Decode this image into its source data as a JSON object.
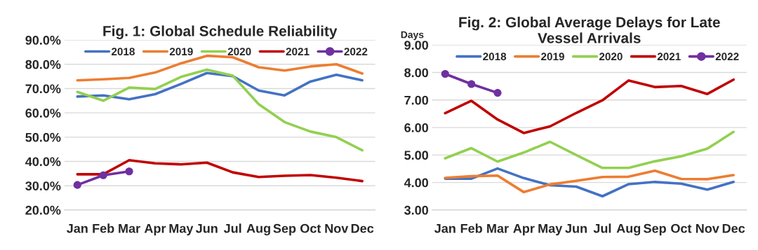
{
  "chart_data": [
    {
      "type": "line",
      "title": "Fig. 1: Global Schedule Reliability",
      "categories": [
        "Jan",
        "Feb",
        "Mar",
        "Apr",
        "May",
        "Jun",
        "Jul",
        "Aug",
        "Sep",
        "Oct",
        "Nov",
        "Dec"
      ],
      "ylim": [
        20,
        90
      ],
      "yticks": [
        {
          "value": 20,
          "label": "20.0%"
        },
        {
          "value": 30,
          "label": "30.0%"
        },
        {
          "value": 40,
          "label": "40.0%"
        },
        {
          "value": 50,
          "label": "50.0%"
        },
        {
          "value": 60,
          "label": "60.0%"
        },
        {
          "value": 70,
          "label": "70.0%"
        },
        {
          "value": 80,
          "label": "80.0%"
        },
        {
          "value": 90,
          "label": "90.0%"
        }
      ],
      "grid": "y",
      "legend": "top right",
      "marker": "none",
      "line_style": "solid",
      "series": [
        {
          "name": "2018",
          "color": "#4472c4",
          "values": [
            66.7,
            67.2,
            65.6,
            67.7,
            71.9,
            76.4,
            75.1,
            69.2,
            67.2,
            72.9,
            75.7,
            73.4
          ]
        },
        {
          "name": "2019",
          "color": "#ed7d31",
          "values": [
            73.4,
            73.8,
            74.4,
            76.6,
            80.4,
            83.5,
            82.9,
            78.8,
            77.4,
            79.1,
            80.0,
            76.2
          ]
        },
        {
          "name": "2020",
          "color": "#92d050",
          "values": [
            68.6,
            65.0,
            70.4,
            69.8,
            74.8,
            77.8,
            75.3,
            63.6,
            56.2,
            52.3,
            50.0,
            44.6
          ]
        },
        {
          "name": "2021",
          "color": "#c00000",
          "values": [
            34.7,
            34.7,
            40.5,
            39.2,
            38.8,
            39.5,
            35.5,
            33.6,
            34.1,
            34.4,
            33.3,
            31.9
          ]
        },
        {
          "name": "2022",
          "color": "#7030a0",
          "marker": "circle",
          "values": [
            30.3,
            34.3,
            35.9,
            null,
            null,
            null,
            null,
            null,
            null,
            null,
            null,
            null
          ]
        }
      ]
    },
    {
      "type": "line",
      "title": "Fig. 2: Global Average Delays for Late\nVessel Arrivals",
      "ylabel": "Days",
      "categories": [
        "Jan",
        "Feb",
        "Mar",
        "Apr",
        "May",
        "Jun",
        "Jul",
        "Aug",
        "Sep",
        "Oct",
        "Nov",
        "Dec"
      ],
      "ylim": [
        3,
        9
      ],
      "yticks": [
        {
          "value": 3,
          "label": "3.00"
        },
        {
          "value": 4,
          "label": "4.00"
        },
        {
          "value": 5,
          "label": "5.00"
        },
        {
          "value": 6,
          "label": "6.00"
        },
        {
          "value": 7,
          "label": "7.00"
        },
        {
          "value": 8,
          "label": "8.00"
        },
        {
          "value": 9,
          "label": "9.00"
        }
      ],
      "grid": "y",
      "legend": "top right",
      "marker": "none",
      "line_style": "solid",
      "series": [
        {
          "name": "2018",
          "color": "#4472c4",
          "values": [
            4.14,
            4.14,
            4.51,
            4.16,
            3.9,
            3.85,
            3.5,
            3.94,
            4.02,
            3.96,
            3.74,
            4.02
          ]
        },
        {
          "name": "2019",
          "color": "#ed7d31",
          "values": [
            4.17,
            4.23,
            4.25,
            3.65,
            3.93,
            4.06,
            4.2,
            4.21,
            4.43,
            4.13,
            4.12,
            4.27
          ]
        },
        {
          "name": "2020",
          "color": "#92d050",
          "values": [
            4.88,
            5.25,
            4.76,
            5.09,
            5.48,
            5.0,
            4.53,
            4.53,
            4.77,
            4.95,
            5.23,
            5.84
          ]
        },
        {
          "name": "2021",
          "color": "#c00000",
          "values": [
            6.52,
            6.97,
            6.29,
            5.8,
            6.04,
            6.53,
            6.99,
            7.71,
            7.47,
            7.51,
            7.22,
            7.74
          ]
        },
        {
          "name": "2022",
          "color": "#7030a0",
          "marker": "circle",
          "values": [
            7.95,
            7.58,
            7.26,
            null,
            null,
            null,
            null,
            null,
            null,
            null,
            null,
            null
          ]
        }
      ]
    }
  ]
}
